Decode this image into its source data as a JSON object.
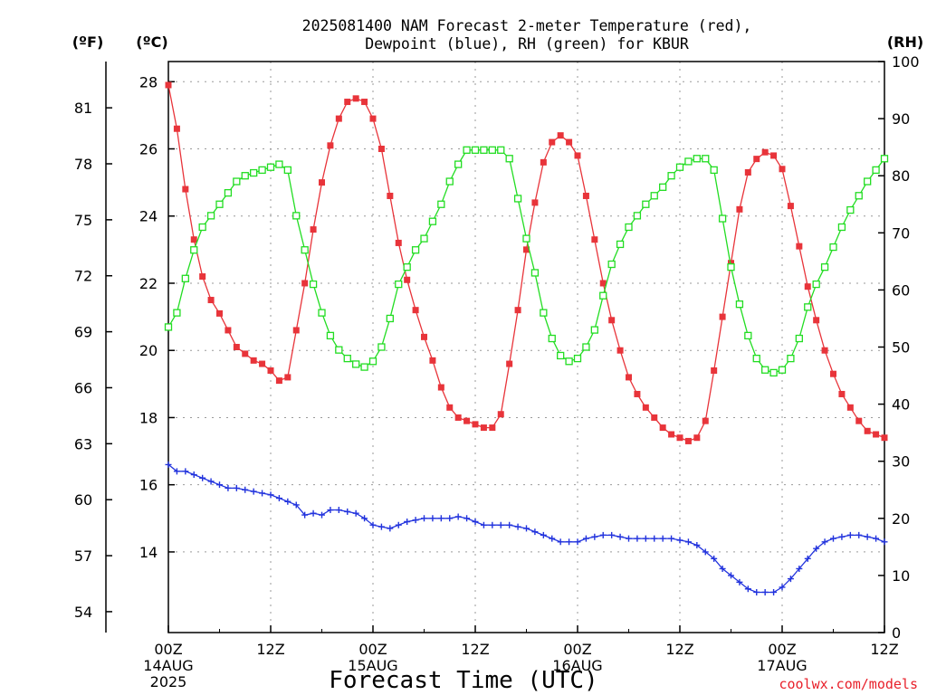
{
  "chart_data": {
    "type": "line",
    "title_line1": "2025081400 NAM Forecast 2-meter Temperature (red),",
    "title_line2": "Dewpoint (blue), RH (green) for KBUR",
    "xlabel": "Forecast Time (UTC)",
    "credit": "coolwx.com/models",
    "units": {
      "fahrenheit": "(ºF)",
      "celsius": "(ºC)",
      "rh": "(RH)"
    },
    "x_range_hours": [
      0,
      84
    ],
    "x_ticks": [
      {
        "hour": 0,
        "label": "00Z",
        "date": "14AUG",
        "year": "2025"
      },
      {
        "hour": 12,
        "label": "12Z",
        "date": "",
        "year": ""
      },
      {
        "hour": 24,
        "label": "00Z",
        "date": "15AUG",
        "year": ""
      },
      {
        "hour": 36,
        "label": "12Z",
        "date": "",
        "year": ""
      },
      {
        "hour": 48,
        "label": "00Z",
        "date": "16AUG",
        "year": ""
      },
      {
        "hour": 60,
        "label": "12Z",
        "date": "",
        "year": ""
      },
      {
        "hour": 72,
        "label": "00Z",
        "date": "17AUG",
        "year": ""
      },
      {
        "hour": 84,
        "label": "12Z",
        "date": "",
        "year": ""
      }
    ],
    "celsius_range": [
      11.6,
      28.6
    ],
    "celsius_ticks": [
      "14",
      "16",
      "18",
      "20",
      "22",
      "24",
      "26",
      "28"
    ],
    "fahrenheit_ticks": [
      "54",
      "57",
      "60",
      "63",
      "66",
      "69",
      "72",
      "75",
      "78",
      "81"
    ],
    "rh_range": [
      0,
      100
    ],
    "rh_ticks": [
      "0",
      "10",
      "20",
      "30",
      "40",
      "50",
      "60",
      "70",
      "80",
      "90",
      "100"
    ],
    "colors": {
      "temperature": "#e8343a",
      "dewpoint": "#2233dd",
      "rh": "#22dd22"
    },
    "series": [
      {
        "name": "Temperature",
        "axis": "celsius",
        "marker": "filled-square",
        "color": "#e8343a",
        "values": [
          27.9,
          26.6,
          24.8,
          23.3,
          22.2,
          21.5,
          21.1,
          20.6,
          20.1,
          19.9,
          19.7,
          19.6,
          19.4,
          19.1,
          19.2,
          20.6,
          22.0,
          23.6,
          25.0,
          26.1,
          26.9,
          27.4,
          27.5,
          27.4,
          26.9,
          26.0,
          24.6,
          23.2,
          22.1,
          21.2,
          20.4,
          19.7,
          18.9,
          18.3,
          18.0,
          17.9,
          17.8,
          17.7,
          17.7,
          18.1,
          19.6,
          21.2,
          23.0,
          24.4,
          25.6,
          26.2,
          26.4,
          26.2,
          25.8,
          24.6,
          23.3,
          22.0,
          20.9,
          20.0,
          19.2,
          18.7,
          18.3,
          18.0,
          17.7,
          17.5,
          17.4,
          17.3,
          17.4,
          17.9,
          19.4,
          21.0,
          22.6,
          24.2,
          25.3,
          25.7,
          25.9,
          25.8,
          25.4,
          24.3,
          23.1,
          21.9,
          20.9,
          20.0,
          19.3,
          18.7,
          18.3,
          17.9,
          17.6,
          17.5,
          17.4
        ]
      },
      {
        "name": "Dewpoint",
        "axis": "celsius",
        "marker": "plus",
        "color": "#2233dd",
        "values": [
          16.6,
          16.4,
          16.4,
          16.3,
          16.2,
          16.1,
          16.0,
          15.9,
          15.9,
          15.85,
          15.8,
          15.75,
          15.7,
          15.6,
          15.5,
          15.4,
          15.1,
          15.15,
          15.1,
          15.25,
          15.25,
          15.2,
          15.15,
          15.0,
          14.8,
          14.75,
          14.7,
          14.8,
          14.9,
          14.95,
          15.0,
          15.0,
          15.0,
          15.0,
          15.05,
          15.0,
          14.9,
          14.8,
          14.8,
          14.8,
          14.8,
          14.75,
          14.7,
          14.6,
          14.5,
          14.4,
          14.3,
          14.3,
          14.3,
          14.4,
          14.45,
          14.5,
          14.5,
          14.45,
          14.4,
          14.4,
          14.4,
          14.4,
          14.4,
          14.4,
          14.35,
          14.3,
          14.2,
          14.0,
          13.8,
          13.5,
          13.3,
          13.1,
          12.9,
          12.8,
          12.8,
          12.8,
          12.95,
          13.2,
          13.5,
          13.8,
          14.1,
          14.3,
          14.4,
          14.45,
          14.5,
          14.5,
          14.45,
          14.4,
          14.3
        ]
      },
      {
        "name": "RH",
        "axis": "rh",
        "marker": "open-square",
        "color": "#22dd22",
        "values": [
          53.5,
          56,
          62,
          67,
          71,
          73,
          75,
          77,
          79,
          80,
          80.5,
          81,
          81.5,
          82,
          81,
          73,
          67,
          61,
          56,
          52,
          49.5,
          48,
          47,
          46.5,
          47.5,
          50,
          55,
          61,
          64,
          67,
          69,
          72,
          75,
          79,
          82,
          84.5,
          84.5,
          84.5,
          84.5,
          84.5,
          83,
          76,
          69,
          63,
          56,
          51.5,
          48.5,
          47.5,
          48,
          50,
          53,
          59,
          64.5,
          68,
          71,
          73,
          75,
          76.5,
          78,
          80,
          81.5,
          82.5,
          83,
          83,
          81,
          72.5,
          64,
          57.5,
          52,
          48,
          46,
          45.5,
          46,
          48,
          51.5,
          57,
          61,
          64,
          67.5,
          71,
          74,
          76.5,
          79,
          81,
          83
        ]
      }
    ]
  }
}
